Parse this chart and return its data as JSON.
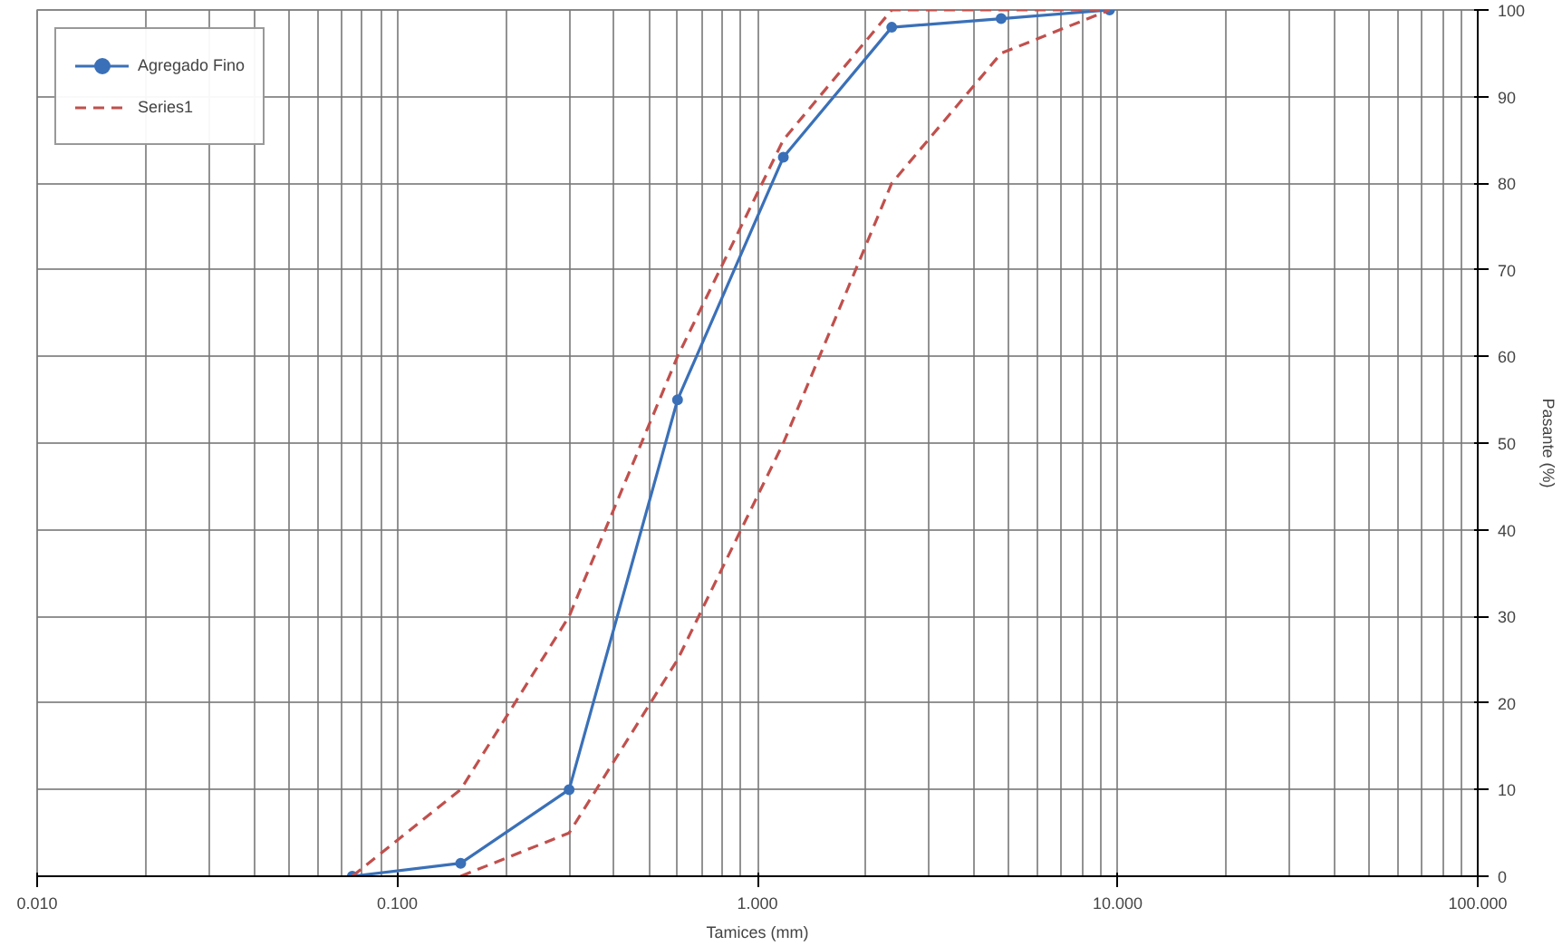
{
  "chart_data": {
    "type": "line",
    "xlabel": "Tamices (mm)",
    "ylabel": "Pasante (%)",
    "log": "x",
    "xlim": [
      0.01,
      100
    ],
    "xticks": [
      {
        "value": 0.01,
        "label": "0.010"
      },
      {
        "value": 0.1,
        "label": "0.100"
      },
      {
        "value": 1,
        "label": "1.000"
      },
      {
        "value": 10,
        "label": "10.000"
      },
      {
        "value": 100,
        "label": "100.000"
      }
    ],
    "ylim": [
      0,
      100
    ],
    "yticks": [
      0,
      10,
      20,
      30,
      40,
      50,
      60,
      70,
      80,
      90,
      100
    ],
    "grid": true,
    "legend": "top left",
    "series": [
      {
        "name": "Agregado Fino",
        "color": "#3a70b8",
        "marker": "circle",
        "line_style": "solid",
        "x": [
          0.075,
          0.15,
          0.3,
          0.6,
          1.18,
          2.36,
          4.75,
          9.5
        ],
        "values": [
          0,
          1.5,
          10,
          55,
          83,
          98,
          99,
          100
        ]
      },
      {
        "name": "Series1",
        "color": "#c0504d",
        "marker": "none",
        "line_style": "dashed",
        "x": [
          0.075,
          0.15,
          0.3,
          0.6,
          1.18,
          2.36,
          4.75,
          9.5
        ],
        "values": [
          0,
          10,
          30,
          60,
          85,
          100,
          100,
          100
        ]
      },
      {
        "color": "#c0504d",
        "marker": "none",
        "line_style": "dashed",
        "x": [
          0.15,
          0.3,
          0.6,
          1.18,
          2.36,
          4.75,
          9.5
        ],
        "values": [
          0,
          5,
          25,
          50,
          80,
          95,
          100
        ]
      }
    ]
  }
}
